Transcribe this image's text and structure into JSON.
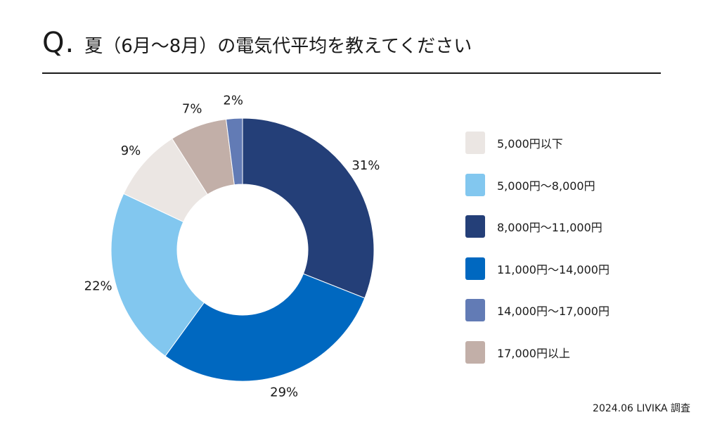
{
  "header": {
    "q_mark": "Q.",
    "question": "夏（6月〜8月）の電気代平均を教えてください"
  },
  "source": "2024.06 LIVIKA 調査",
  "chart_data": {
    "type": "pie",
    "donut": true,
    "categories": [
      "5,000円以下",
      "5,000円〜8,000円",
      "8,000円〜11,000円",
      "11,000円〜14,000円",
      "14,000円〜17,000円",
      "17,000円以上"
    ],
    "values": [
      9,
      22,
      31,
      29,
      2,
      7
    ],
    "labels": [
      "9%",
      "22%",
      "31%",
      "29%",
      "2%",
      "7%"
    ],
    "colors": [
      "#ebe6e3",
      "#82c7ef",
      "#243f78",
      "#0068c0",
      "#627bb5",
      "#c2afa8"
    ],
    "slice_order": [
      2,
      3,
      1,
      0,
      5,
      4
    ],
    "legend_position": "right"
  }
}
